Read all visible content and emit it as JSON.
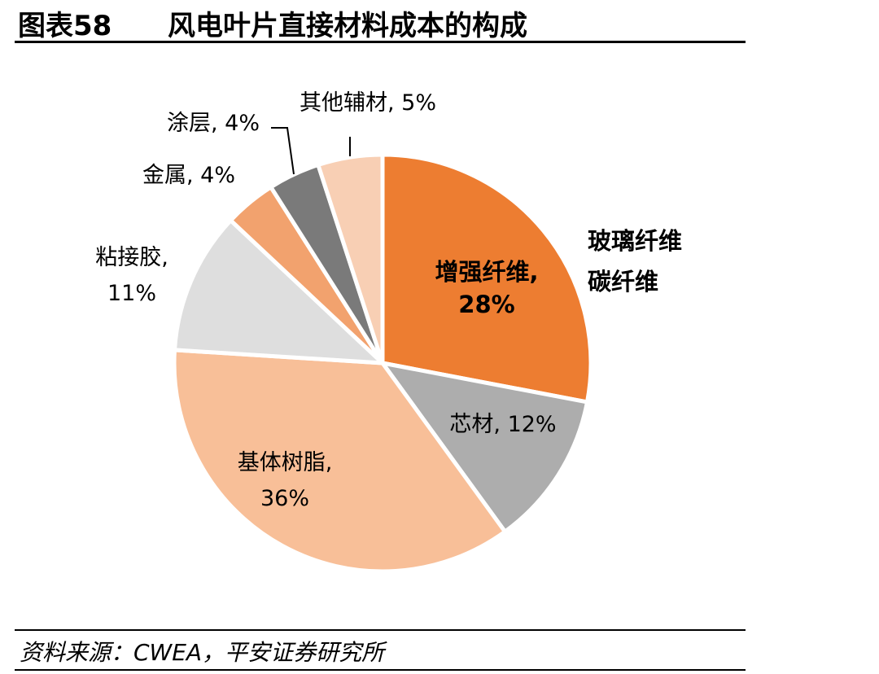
{
  "header": {
    "figure_label": "图表58",
    "title": "风电叶片直接材料成本的构成"
  },
  "chart_data": {
    "type": "pie",
    "title": "风电叶片直接材料成本的构成",
    "slices": [
      {
        "name": "增强纤维",
        "value": 28,
        "color": "#ED7D31",
        "label_lines": [
          "增强纤维,",
          "28%"
        ],
        "label_bold": true
      },
      {
        "name": "芯材",
        "value": 12,
        "color": "#ADADAD",
        "label_lines": [
          "芯材, 12%"
        ],
        "label_bold": false
      },
      {
        "name": "基体树脂",
        "value": 36,
        "color": "#F8BF98",
        "label_lines": [
          "基体树脂,",
          "36%"
        ],
        "label_bold": false
      },
      {
        "name": "粘接胶",
        "value": 11,
        "color": "#DEDEDE",
        "label_lines": [
          "粘接胶,",
          "11%"
        ],
        "label_bold": false
      },
      {
        "name": "金属",
        "value": 4,
        "color": "#F2A26E",
        "label_lines": [
          "金属, 4%"
        ],
        "label_bold": false
      },
      {
        "name": "涂层",
        "value": 4,
        "color": "#7A7A7A",
        "label_lines": [
          "涂层, 4%"
        ],
        "label_bold": false
      },
      {
        "name": "其他辅材",
        "value": 5,
        "color": "#F8CFB4",
        "label_lines": [
          "其他辅材, 5%"
        ],
        "label_bold": false
      }
    ],
    "annotation": [
      "玻璃纤维",
      "碳纤维"
    ]
  },
  "footer": {
    "source": "资料来源：CWEA，平安证券研究所"
  }
}
